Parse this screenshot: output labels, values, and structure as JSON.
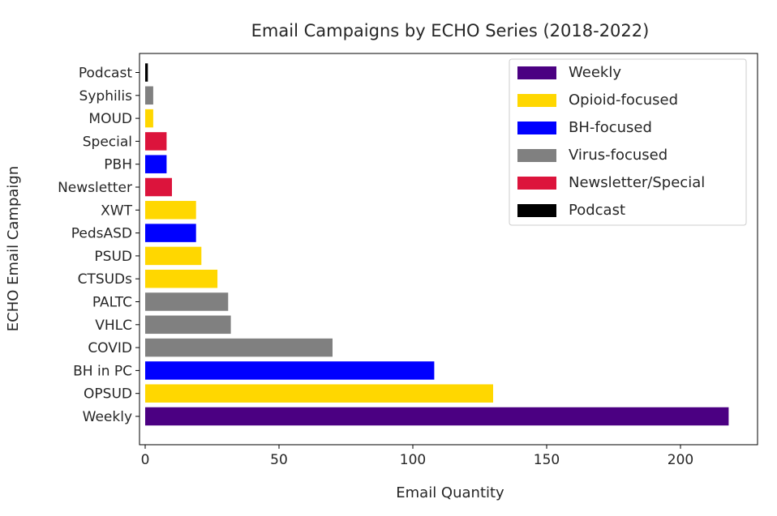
{
  "chart_data": {
    "type": "bar",
    "orientation": "horizontal",
    "title": "Email Campaigns by ECHO Series (2018-2022)",
    "xlabel": "Email Quantity",
    "ylabel": "ECHO Email Campaign",
    "xlim": [
      0,
      230
    ],
    "xticks": [
      0,
      50,
      100,
      150,
      200
    ],
    "grid": false,
    "legend_position": "top-right",
    "legend": [
      {
        "label": "Weekly",
        "color": "#4b0082"
      },
      {
        "label": "Opioid-focused",
        "color": "#ffd700"
      },
      {
        "label": "BH-focused",
        "color": "#0000ff"
      },
      {
        "label": "Virus-focused",
        "color": "#808080"
      },
      {
        "label": "Newsletter/Special",
        "color": "#dc143c"
      },
      {
        "label": "Podcast",
        "color": "#000000"
      }
    ],
    "bars": [
      {
        "category": "Weekly",
        "value": 218,
        "group": "Weekly"
      },
      {
        "category": "OPSUD",
        "value": 130,
        "group": "Opioid-focused"
      },
      {
        "category": "BH in PC",
        "value": 108,
        "group": "BH-focused"
      },
      {
        "category": "COVID",
        "value": 70,
        "group": "Virus-focused"
      },
      {
        "category": "VHLC",
        "value": 32,
        "group": "Virus-focused"
      },
      {
        "category": "PALTC",
        "value": 31,
        "group": "Virus-focused"
      },
      {
        "category": "CTSUDs",
        "value": 27,
        "group": "Opioid-focused"
      },
      {
        "category": "PSUD",
        "value": 21,
        "group": "Opioid-focused"
      },
      {
        "category": "PedsASD",
        "value": 19,
        "group": "BH-focused"
      },
      {
        "category": "XWT",
        "value": 19,
        "group": "Opioid-focused"
      },
      {
        "category": "Newsletter",
        "value": 10,
        "group": "Newsletter/Special"
      },
      {
        "category": "PBH",
        "value": 8,
        "group": "BH-focused"
      },
      {
        "category": "Special",
        "value": 8,
        "group": "Newsletter/Special"
      },
      {
        "category": "MOUD",
        "value": 3,
        "group": "Opioid-focused"
      },
      {
        "category": "Syphilis",
        "value": 3,
        "group": "Virus-focused"
      },
      {
        "category": "Podcast",
        "value": 1,
        "group": "Podcast"
      }
    ]
  }
}
